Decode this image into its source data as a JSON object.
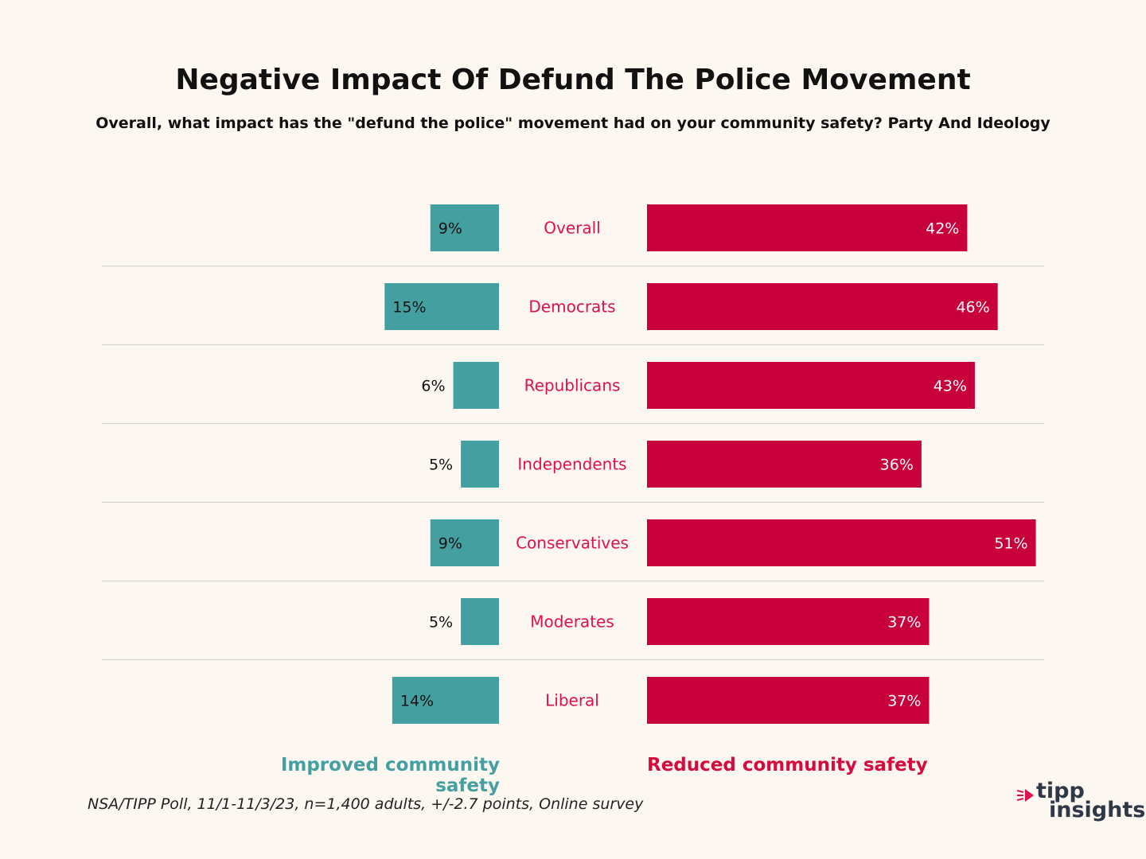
{
  "chart_data": {
    "type": "bar",
    "title": "Negative Impact Of Defund The Police Movement",
    "subtitle": "Overall, what impact has the \"defund the police\" movement had on your community safety? Party And Ideology",
    "categories": [
      "Overall",
      "Democrats",
      "Republicans",
      "Independents",
      "Conservatives",
      "Moderates",
      "Liberal"
    ],
    "series": [
      {
        "name": "Improved community safety",
        "color": "#44a0a0",
        "values": [
          9,
          15,
          6,
          5,
          9,
          5,
          14
        ],
        "labels": [
          "9%",
          "15%",
          "6%",
          "5%",
          "9%",
          "5%",
          "14%"
        ]
      },
      {
        "name": "Reduced community safety",
        "color": "#c8003c",
        "values": [
          42,
          46,
          43,
          36,
          51,
          37,
          37
        ],
        "labels": [
          "42%",
          "46%",
          "43%",
          "36%",
          "51%",
          "37%",
          "37%"
        ]
      }
    ],
    "category_label_color": "#e0104a",
    "unit": "%"
  },
  "source": "NSA/TIPP Poll, 11/1-11/3/23, n=1,400 adults, +/-2.7 points, Online survey",
  "logo": {
    "line1": "tipp",
    "line2": "insights",
    "mark_icon": "tipp-arrow-logo-icon"
  }
}
